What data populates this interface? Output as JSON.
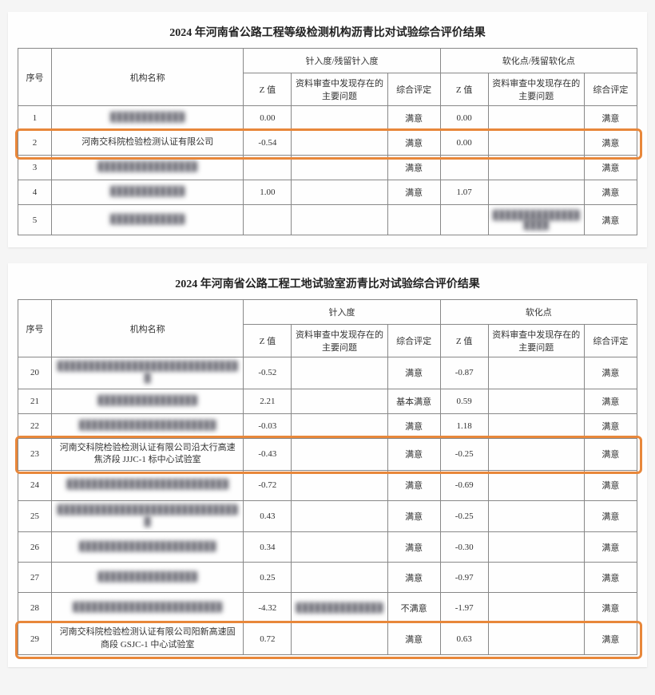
{
  "table1": {
    "title": "2024 年河南省公路工程等级检测机构沥青比对试验综合评价结果",
    "headers": {
      "idx": "序号",
      "name": "机构名称",
      "group1": "针入度/残留针入度",
      "group2": "软化点/残留软化点",
      "z": "Z 值",
      "issue": "资料审查中发现存在的主要问题",
      "rate": "综合评定"
    },
    "rows": [
      {
        "idx": "1",
        "name": "████████████",
        "z1": "0.00",
        "issue1": "",
        "rate1": "满意",
        "z2": "0.00",
        "issue2": "",
        "rate2": "满意",
        "blur": true,
        "partial": true
      },
      {
        "idx": "2",
        "name": "河南交科院检验检测认证有限公司",
        "z1": "-0.54",
        "issue1": "",
        "rate1": "满意",
        "z2": "0.00",
        "issue2": "",
        "rate2": "满意",
        "highlight": true
      },
      {
        "idx": "3",
        "name": "████████████████",
        "z1": "",
        "issue1": "",
        "rate1": "满意",
        "z2": "",
        "issue2": "",
        "rate2": "满意",
        "blur": true
      },
      {
        "idx": "4",
        "name": "████████████",
        "z1": "1.00",
        "issue1": "",
        "rate1": "满意",
        "z2": "1.07",
        "issue2": "",
        "rate2": "满意",
        "blur": true
      },
      {
        "idx": "5",
        "name": "████████████",
        "z1": "",
        "issue1": "",
        "rate1": "",
        "z2": "",
        "issue2": "██████████████████",
        "rate2": "满意",
        "blur": true,
        "tall": true
      }
    ]
  },
  "table2": {
    "title": "2024 年河南省公路工程工地试验室沥青比对试验综合评价结果",
    "headers": {
      "idx": "序号",
      "name": "机构名称",
      "group1": "针入度",
      "group2": "软化点",
      "z": "Z 值",
      "issue": "资料审查中发现存在的主要问题",
      "rate": "综合评定"
    },
    "rows": [
      {
        "idx": "20",
        "name": "██████████████████████████████",
        "z1": "-0.52",
        "issue1": "",
        "rate1": "满意",
        "z2": "-0.87",
        "issue2": "",
        "rate2": "满意",
        "blur": true,
        "tall": true
      },
      {
        "idx": "21",
        "name": "████████████████",
        "z1": "2.21",
        "issue1": "",
        "rate1": "基本满意",
        "z2": "0.59",
        "issue2": "",
        "rate2": "满意",
        "blur": true
      },
      {
        "idx": "22",
        "name": "██████████████████████",
        "z1": "-0.03",
        "issue1": "",
        "rate1": "满意",
        "z2": "1.18",
        "issue2": "",
        "rate2": "满意",
        "blur": true
      },
      {
        "idx": "23",
        "name": "河南交科院检验检测认证有限公司沿太行高速焦济段 JJJC-1 标中心试验室",
        "z1": "-0.43",
        "issue1": "",
        "rate1": "满意",
        "z2": "-0.25",
        "issue2": "",
        "rate2": "满意",
        "highlight": true,
        "tall": true
      },
      {
        "idx": "24",
        "name": "██████████████████████████",
        "z1": "-0.72",
        "issue1": "",
        "rate1": "满意",
        "z2": "-0.69",
        "issue2": "",
        "rate2": "满意",
        "blur": true,
        "tall": true
      },
      {
        "idx": "25",
        "name": "██████████████████████████████",
        "z1": "0.43",
        "issue1": "",
        "rate1": "满意",
        "z2": "-0.25",
        "issue2": "",
        "rate2": "满意",
        "blur": true,
        "tall": true
      },
      {
        "idx": "26",
        "name": "██████████████████████",
        "z1": "0.34",
        "issue1": "",
        "rate1": "满意",
        "z2": "-0.30",
        "issue2": "",
        "rate2": "满意",
        "blur": true,
        "tall": true
      },
      {
        "idx": "27",
        "name": "████████████████",
        "z1": "0.25",
        "issue1": "",
        "rate1": "满意",
        "z2": "-0.97",
        "issue2": "",
        "rate2": "满意",
        "blur": true,
        "tall": true
      },
      {
        "idx": "28",
        "name": "████████████████████████",
        "z1": "-4.32",
        "issue1": "██████████████",
        "rate1": "不满意",
        "z2": "-1.97",
        "issue2": "",
        "rate2": "满意",
        "blur": true,
        "tall": true
      },
      {
        "idx": "29",
        "name": "河南交科院检验检测认证有限公司阳新高速固商段 GSJC-1 中心试验室",
        "z1": "0.72",
        "issue1": "",
        "rate1": "满意",
        "z2": "0.63",
        "issue2": "",
        "rate2": "满意",
        "highlight": true,
        "tall": true
      }
    ]
  },
  "style": {
    "highlight_color": "#e8873a",
    "border_color": "#888888",
    "bg": "#fefefe"
  }
}
